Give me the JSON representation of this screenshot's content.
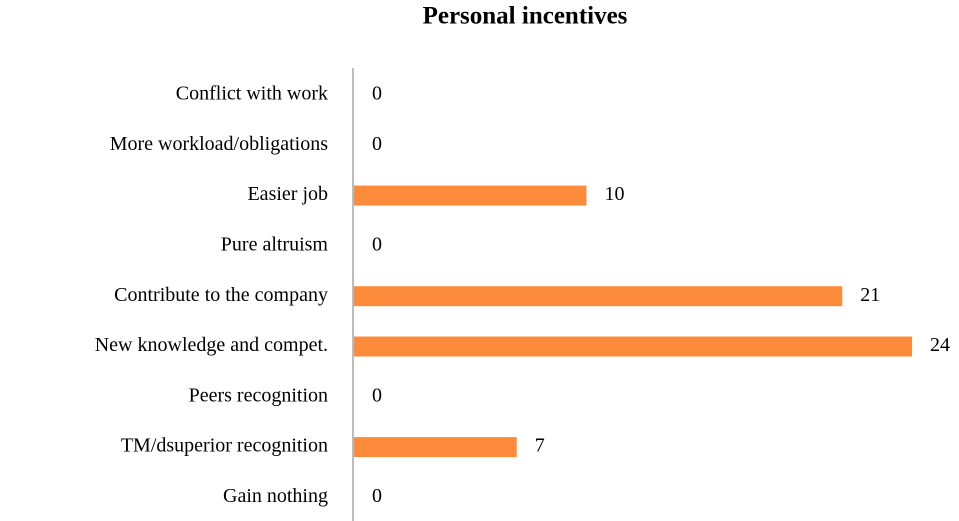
{
  "chart_data": {
    "type": "bar",
    "orientation": "horizontal",
    "title": "Personal incentives",
    "categories": [
      "Conflict with work",
      "More workload/obligations",
      "Easier job",
      "Pure altruism",
      "Contribute to the company",
      "New knowledge and compet.",
      "Peers recognition",
      "TM/dsuperior recognition",
      "Gain nothing"
    ],
    "values": [
      0,
      0,
      10,
      0,
      21,
      24,
      0,
      7,
      0
    ],
    "color": "#fd8b3c",
    "xlim": [
      0,
      24
    ]
  }
}
